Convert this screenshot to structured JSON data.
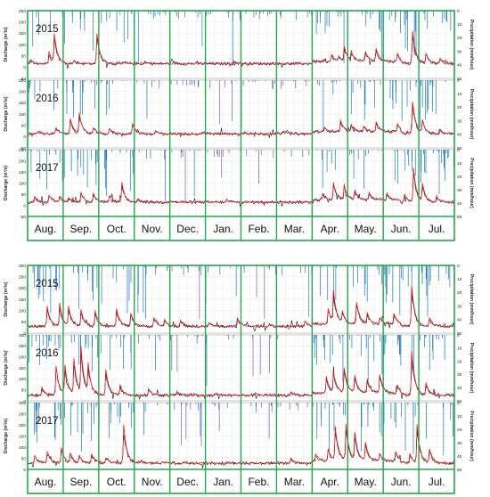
{
  "chart_data": [
    {
      "type": "line",
      "title": "",
      "ylabel": "Discharge (m³/s)",
      "y2label": "Precipitation (mm/hour)",
      "ylim": [
        -50,
        250
      ],
      "y2lim": [
        0,
        50
      ],
      "yticks": [
        "250",
        "200",
        "150",
        "100",
        "50",
        "0",
        "-50"
      ],
      "y2ticks": [
        "0",
        "10",
        "20",
        "30",
        "40",
        "50"
      ],
      "months": [
        "Aug.",
        "Sep.",
        "Oct.",
        "Nov.",
        "Dec.",
        "Jan.",
        "Feb.",
        "Mar.",
        "Apr.",
        "May.",
        "Jun.",
        "Jul."
      ],
      "series_colors": {
        "observed": "#000000",
        "simulated": "#e8141c",
        "precip_rain": "#1f77b4",
        "precip_snow": "#7b5aa6",
        "frame": "#22a84a"
      },
      "panels": [
        {
          "year": "2015",
          "base": 15,
          "peaks": [
            [
              0.08,
              35
            ],
            [
              0.6,
              70
            ],
            [
              0.75,
              140
            ],
            [
              1.3,
              30
            ],
            [
              1.95,
              150
            ],
            [
              2.7,
              22
            ],
            [
              3.3,
              25
            ],
            [
              4.1,
              20
            ],
            [
              5.8,
              25
            ],
            [
              6.9,
              18
            ],
            [
              8.55,
              45
            ],
            [
              8.75,
              35
            ],
            [
              8.9,
              80
            ],
            [
              9.1,
              55
            ],
            [
              9.5,
              60
            ],
            [
              9.8,
              70
            ],
            [
              10.4,
              50
            ],
            [
              10.82,
              170
            ],
            [
              11.2,
              60
            ],
            [
              11.6,
              40
            ]
          ]
        },
        {
          "year": "2016",
          "base": 12,
          "peaks": [
            [
              0.3,
              25
            ],
            [
              0.8,
              40
            ],
            [
              1.2,
              80
            ],
            [
              1.45,
              100
            ],
            [
              1.85,
              40
            ],
            [
              2.3,
              35
            ],
            [
              2.95,
              60
            ],
            [
              3.6,
              25
            ],
            [
              4.9,
              20
            ],
            [
              6.1,
              22
            ],
            [
              7.2,
              25
            ],
            [
              8.35,
              30
            ],
            [
              8.8,
              65
            ],
            [
              9.1,
              40
            ],
            [
              9.45,
              35
            ],
            [
              9.8,
              55
            ],
            [
              10.4,
              45
            ],
            [
              10.82,
              165
            ],
            [
              11.1,
              70
            ],
            [
              11.6,
              30
            ]
          ]
        },
        {
          "year": "2017",
          "base": 14,
          "peaks": [
            [
              0.2,
              40
            ],
            [
              0.6,
              45
            ],
            [
              0.9,
              40
            ],
            [
              1.15,
              35
            ],
            [
              1.5,
              60
            ],
            [
              1.85,
              55
            ],
            [
              2.3,
              45
            ],
            [
              2.65,
              100
            ],
            [
              3.1,
              30
            ],
            [
              4.0,
              20
            ],
            [
              5.6,
              25
            ],
            [
              7.1,
              20
            ],
            [
              8.3,
              45
            ],
            [
              8.6,
              90
            ],
            [
              8.9,
              80
            ],
            [
              9.2,
              55
            ],
            [
              9.6,
              50
            ],
            [
              10.1,
              45
            ],
            [
              10.6,
              50
            ],
            [
              10.85,
              165
            ],
            [
              11.1,
              90
            ],
            [
              11.5,
              40
            ]
          ]
        }
      ]
    },
    {
      "type": "line",
      "title": "",
      "ylabel": "Discharge (m³/s)",
      "y2label": "Precipitation (mm/hour)",
      "ylim": [
        0,
        300
      ],
      "y2lim": [
        0,
        50
      ],
      "yticks": [
        "300",
        "250",
        "200",
        "150",
        "100",
        "50",
        "0"
      ],
      "y2ticks": [
        "0",
        "10",
        "20",
        "30",
        "40",
        "50"
      ],
      "months": [
        "Aug.",
        "Sep.",
        "Oct.",
        "Nov.",
        "Dec.",
        "Jan.",
        "Feb.",
        "Mar.",
        "Apr.",
        "May.",
        "Jun.",
        "Jul."
      ],
      "series_colors": {
        "observed": "#000000",
        "simulated": "#e8141c",
        "precip_rain": "#1f77b4",
        "precip_snow": "#7b5aa6",
        "frame": "#22a84a"
      },
      "panels": [
        {
          "year": "2015",
          "base": 30,
          "peaks": [
            [
              0.55,
              120
            ],
            [
              0.9,
              130
            ],
            [
              1.15,
              115
            ],
            [
              1.5,
              105
            ],
            [
              1.9,
              100
            ],
            [
              2.5,
              110
            ],
            [
              2.9,
              90
            ],
            [
              3.55,
              70
            ],
            [
              3.85,
              60
            ],
            [
              4.3,
              55
            ],
            [
              5.1,
              45
            ],
            [
              5.9,
              70
            ],
            [
              6.8,
              40
            ],
            [
              7.8,
              55
            ],
            [
              8.45,
              100
            ],
            [
              8.6,
              170
            ],
            [
              8.85,
              80
            ],
            [
              9.25,
              130
            ],
            [
              9.55,
              75
            ],
            [
              9.9,
              60
            ],
            [
              10.3,
              80
            ],
            [
              10.8,
              210
            ],
            [
              11.3,
              70
            ]
          ]
        },
        {
          "year": "2016",
          "base": 25,
          "peaks": [
            [
              0.4,
              60
            ],
            [
              0.8,
              160
            ],
            [
              1.05,
              155
            ],
            [
              1.3,
              185
            ],
            [
              1.5,
              230
            ],
            [
              1.7,
              150
            ],
            [
              2.2,
              140
            ],
            [
              2.6,
              70
            ],
            [
              3.4,
              55
            ],
            [
              4.2,
              40
            ],
            [
              5.3,
              35
            ],
            [
              6.4,
              35
            ],
            [
              7.4,
              40
            ],
            [
              8.4,
              100
            ],
            [
              8.6,
              120
            ],
            [
              8.9,
              140
            ],
            [
              9.2,
              100
            ],
            [
              9.55,
              90
            ],
            [
              9.9,
              110
            ],
            [
              10.4,
              60
            ],
            [
              10.8,
              230
            ],
            [
              11.2,
              80
            ]
          ]
        },
        {
          "year": "2017",
          "base": 28,
          "peaks": [
            [
              0.2,
              60
            ],
            [
              0.55,
              80
            ],
            [
              0.95,
              95
            ],
            [
              1.2,
              70
            ],
            [
              1.45,
              60
            ],
            [
              1.8,
              70
            ],
            [
              2.2,
              60
            ],
            [
              2.7,
              200
            ],
            [
              3.2,
              40
            ],
            [
              3.8,
              35
            ],
            [
              4.6,
              30
            ],
            [
              5.5,
              25
            ],
            [
              6.6,
              25
            ],
            [
              7.4,
              50
            ],
            [
              8.1,
              60
            ],
            [
              8.45,
              80
            ],
            [
              8.65,
              180
            ],
            [
              8.95,
              190
            ],
            [
              9.2,
              150
            ],
            [
              9.5,
              110
            ],
            [
              9.9,
              60
            ],
            [
              10.35,
              70
            ],
            [
              10.75,
              70
            ],
            [
              10.95,
              200
            ],
            [
              11.3,
              90
            ]
          ]
        }
      ]
    }
  ]
}
